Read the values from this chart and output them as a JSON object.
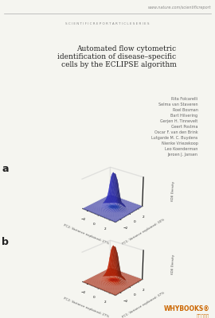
{
  "bg_color": "#f5f5f0",
  "header_url": "www.nature.com/scientificreport",
  "header_series": "S C I E N T I F I C R E P O R T A R T I C L E S E R I E S",
  "title_line1": "Automated flow cytometric",
  "title_line2": "identification of disease–specific",
  "title_line3": "cells by the ECLIPSE algorithm",
  "authors": [
    "Rita Folcarelli",
    "Selma van Staveren",
    "Roel Bosman",
    "Bart Hilvering",
    "Gerjen H. Tinnevelt",
    "Geert Postma",
    "Oscar F. van den Brink",
    "Lutgarde M. C. Buydens",
    "Nienke Vriezekoop",
    "Leo Koenderman",
    "Jeroen J. Jansen"
  ],
  "panel_a_label": "a",
  "panel_b_label": "b",
  "xlabel_a": "PC2: Variance explained: 27%",
  "ylabel_a": "PC1: Variance explained: 30%",
  "xlabel_b": "PC2: Variance explained: 27%",
  "ylabel_b": "PC1: Variance explained: 37%",
  "zlabel": "KDE Density",
  "blue_color": "#3333cc",
  "red_color": "#cc2200",
  "watermark": "WHYBOOKS®",
  "watermark_sub": "中文图书馆"
}
